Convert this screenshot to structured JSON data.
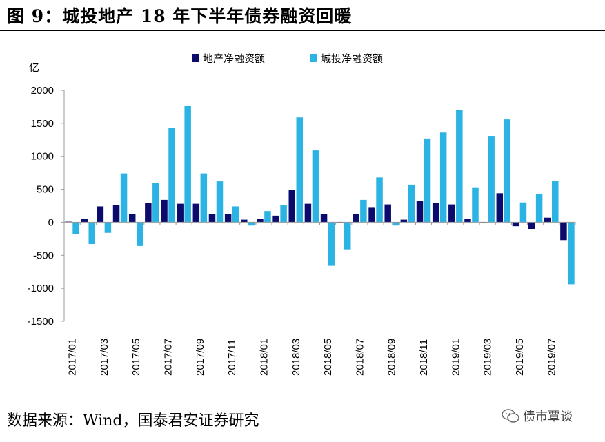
{
  "title": "图 9：城投地产 18 年下半年债券融资回暖",
  "source": "数据来源：Wind，国泰君安证券研究",
  "watermark": "债市覃谈",
  "chart_data": {
    "type": "bar",
    "unit_label": "亿",
    "ylim": [
      -1500,
      2000
    ],
    "yticks": [
      2000,
      1500,
      1000,
      500,
      0,
      -500,
      -1000,
      -1500
    ],
    "legend_position": "top-center",
    "grid": false,
    "categories": [
      "2017/01",
      "2017/02",
      "2017/03",
      "2017/04",
      "2017/05",
      "2017/06",
      "2017/07",
      "2017/08",
      "2017/09",
      "2017/10",
      "2017/11",
      "2017/12",
      "2018/01",
      "2018/02",
      "2018/03",
      "2018/04",
      "2018/05",
      "2018/06",
      "2018/07",
      "2018/08",
      "2018/09",
      "2018/10",
      "2018/11",
      "2018/12",
      "2019/01",
      "2019/02",
      "2019/03",
      "2019/04",
      "2019/05",
      "2019/06",
      "2019/07",
      "2019/08"
    ],
    "xticklabels": [
      "2017/01",
      "",
      "2017/03",
      "",
      "2017/05",
      "",
      "2017/07",
      "",
      "2017/09",
      "",
      "2017/11",
      "",
      "2018/01",
      "",
      "2018/03",
      "",
      "2018/05",
      "",
      "2018/07",
      "",
      "2018/09",
      "",
      "2018/11",
      "",
      "2019/01",
      "",
      "2019/03",
      "",
      "2019/05",
      "",
      "2019/07",
      ""
    ],
    "series": [
      {
        "name": "地产净融资额",
        "color": "#0b0b6e",
        "values": [
          10,
          50,
          240,
          260,
          130,
          290,
          340,
          280,
          280,
          130,
          130,
          40,
          50,
          100,
          490,
          280,
          120,
          -10,
          120,
          230,
          270,
          40,
          320,
          290,
          270,
          50,
          0,
          440,
          -60,
          -100,
          70,
          -270
        ]
      },
      {
        "name": "城投净融资额",
        "color": "#2bb3e3",
        "values": [
          -180,
          -330,
          -160,
          740,
          -360,
          600,
          1430,
          1760,
          740,
          620,
          240,
          -50,
          170,
          260,
          1590,
          1090,
          -660,
          -410,
          340,
          680,
          -50,
          570,
          1270,
          1360,
          1700,
          530,
          1310,
          1560,
          300,
          430,
          630,
          -940
        ]
      }
    ]
  }
}
